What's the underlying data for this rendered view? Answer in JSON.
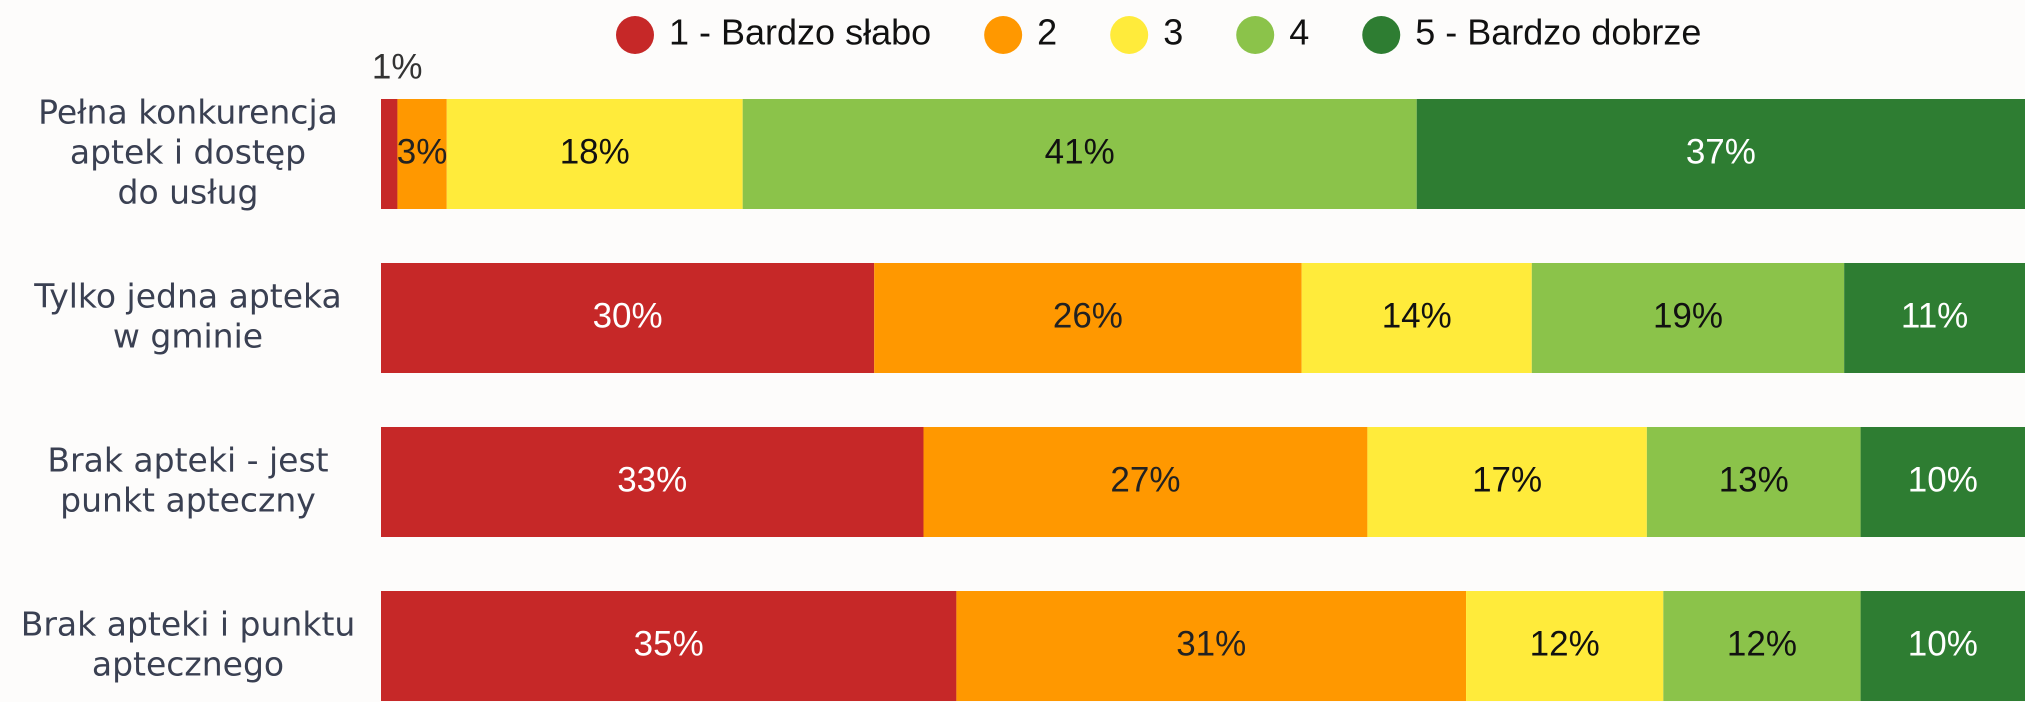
{
  "chart_data": {
    "type": "stacked_bar_horizontal",
    "categories": [
      [
        "Pełna konkurencja",
        "aptek i dostęp",
        "do usług"
      ],
      [
        "Tylko jedna apteka",
        "w gminie"
      ],
      [
        "Brak apteki - jest",
        "punkt apteczny"
      ],
      [
        "Brak apteki i punktu",
        "aptecznego"
      ]
    ],
    "xlim": [
      0,
      100
    ],
    "legend": "top",
    "series": [
      {
        "name": "1 - Bardzo słabo",
        "color": "#c62828",
        "label_color": "#ffffff",
        "values": [
          1,
          30,
          33,
          35
        ],
        "value_labels": [
          "1%",
          "30%",
          "33%",
          "35%"
        ]
      },
      {
        "name": "2",
        "color": "#ff9800",
        "label_color": "#222222",
        "values": [
          3,
          26,
          27,
          31
        ],
        "value_labels": [
          "3%",
          "26%",
          "27%",
          "31%"
        ]
      },
      {
        "name": "3",
        "color": "#ffeb3b",
        "label_color": "#111111",
        "values": [
          18,
          14,
          17,
          12
        ],
        "value_labels": [
          "18%",
          "14%",
          "17%",
          "12%"
        ]
      },
      {
        "name": "4",
        "color": "#8bc34a",
        "label_color": "#111111",
        "values": [
          41,
          19,
          13,
          12
        ],
        "value_labels": [
          "41%",
          "19%",
          "13%",
          "12%"
        ]
      },
      {
        "name": "5 - Bardzo dobrze",
        "color": "#2e7d32",
        "label_color": "#ffffff",
        "values": [
          37,
          11,
          10,
          10
        ],
        "value_labels": [
          "37%",
          "11%",
          "10%",
          "10%"
        ]
      }
    ]
  }
}
